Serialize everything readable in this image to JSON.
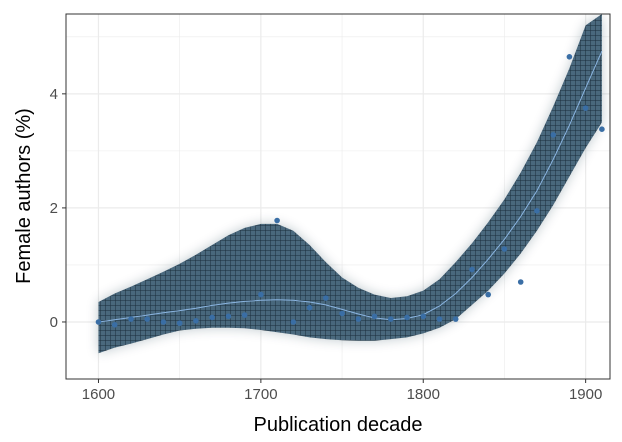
{
  "chart_data": {
    "type": "scatter",
    "title": "",
    "xlabel": "Publication decade",
    "ylabel": "Female authors (%)",
    "xlim": [
      1580,
      1915
    ],
    "ylim": [
      -1.0,
      5.4
    ],
    "x_ticks": [
      1600,
      1700,
      1800,
      1900
    ],
    "y_ticks": [
      0,
      2,
      4
    ],
    "grid": true,
    "legend": "none",
    "colors": {
      "points": "#3a6ea5",
      "smooth_line": "#8ab4e0",
      "ribbon": "#0d2a3e",
      "grid": "#ebebeb",
      "panel_border": "#333333"
    },
    "points": [
      {
        "x": 1600,
        "y": 0.0
      },
      {
        "x": 1610,
        "y": -0.05
      },
      {
        "x": 1620,
        "y": 0.05
      },
      {
        "x": 1630,
        "y": 0.05
      },
      {
        "x": 1640,
        "y": 0.0
      },
      {
        "x": 1650,
        "y": -0.02
      },
      {
        "x": 1660,
        "y": 0.02
      },
      {
        "x": 1670,
        "y": 0.08
      },
      {
        "x": 1680,
        "y": 0.1
      },
      {
        "x": 1690,
        "y": 0.12
      },
      {
        "x": 1700,
        "y": 0.48
      },
      {
        "x": 1710,
        "y": 1.78
      },
      {
        "x": 1720,
        "y": 0.0
      },
      {
        "x": 1730,
        "y": 0.25
      },
      {
        "x": 1740,
        "y": 0.42
      },
      {
        "x": 1750,
        "y": 0.15
      },
      {
        "x": 1760,
        "y": 0.05
      },
      {
        "x": 1770,
        "y": 0.1
      },
      {
        "x": 1780,
        "y": 0.05
      },
      {
        "x": 1790,
        "y": 0.08
      },
      {
        "x": 1800,
        "y": 0.1
      },
      {
        "x": 1810,
        "y": 0.05
      },
      {
        "x": 1820,
        "y": 0.05
      },
      {
        "x": 1830,
        "y": 0.92
      },
      {
        "x": 1840,
        "y": 0.48
      },
      {
        "x": 1850,
        "y": 1.28
      },
      {
        "x": 1860,
        "y": 0.7
      },
      {
        "x": 1870,
        "y": 1.95
      },
      {
        "x": 1880,
        "y": 3.28
      },
      {
        "x": 1890,
        "y": 4.65
      },
      {
        "x": 1900,
        "y": 3.75
      },
      {
        "x": 1910,
        "y": 3.38
      }
    ],
    "smooth": {
      "x": [
        1600,
        1610,
        1620,
        1630,
        1640,
        1650,
        1660,
        1670,
        1680,
        1690,
        1700,
        1710,
        1720,
        1730,
        1740,
        1750,
        1760,
        1770,
        1780,
        1790,
        1800,
        1810,
        1820,
        1830,
        1840,
        1850,
        1860,
        1870,
        1880,
        1890,
        1900,
        1910
      ],
      "y": [
        0.0,
        0.04,
        0.08,
        0.12,
        0.16,
        0.2,
        0.24,
        0.29,
        0.33,
        0.36,
        0.38,
        0.39,
        0.38,
        0.35,
        0.3,
        0.22,
        0.14,
        0.07,
        0.04,
        0.06,
        0.13,
        0.28,
        0.5,
        0.78,
        1.1,
        1.45,
        1.85,
        2.3,
        2.85,
        3.45,
        4.1,
        4.75
      ],
      "lower": [
        -0.55,
        -0.45,
        -0.38,
        -0.3,
        -0.22,
        -0.15,
        -0.12,
        -0.1,
        -0.1,
        -0.11,
        -0.14,
        -0.18,
        -0.22,
        -0.27,
        -0.3,
        -0.32,
        -0.33,
        -0.33,
        -0.3,
        -0.27,
        -0.2,
        -0.1,
        0.05,
        0.3,
        0.55,
        0.85,
        1.2,
        1.6,
        2.05,
        2.55,
        3.05,
        3.5
      ],
      "upper": [
        0.35,
        0.5,
        0.62,
        0.75,
        0.88,
        1.02,
        1.18,
        1.35,
        1.52,
        1.65,
        1.72,
        1.72,
        1.6,
        1.35,
        1.05,
        0.78,
        0.6,
        0.48,
        0.42,
        0.45,
        0.55,
        0.75,
        1.05,
        1.38,
        1.75,
        2.15,
        2.62,
        3.15,
        3.78,
        4.45,
        5.2,
        5.4
      ]
    }
  }
}
